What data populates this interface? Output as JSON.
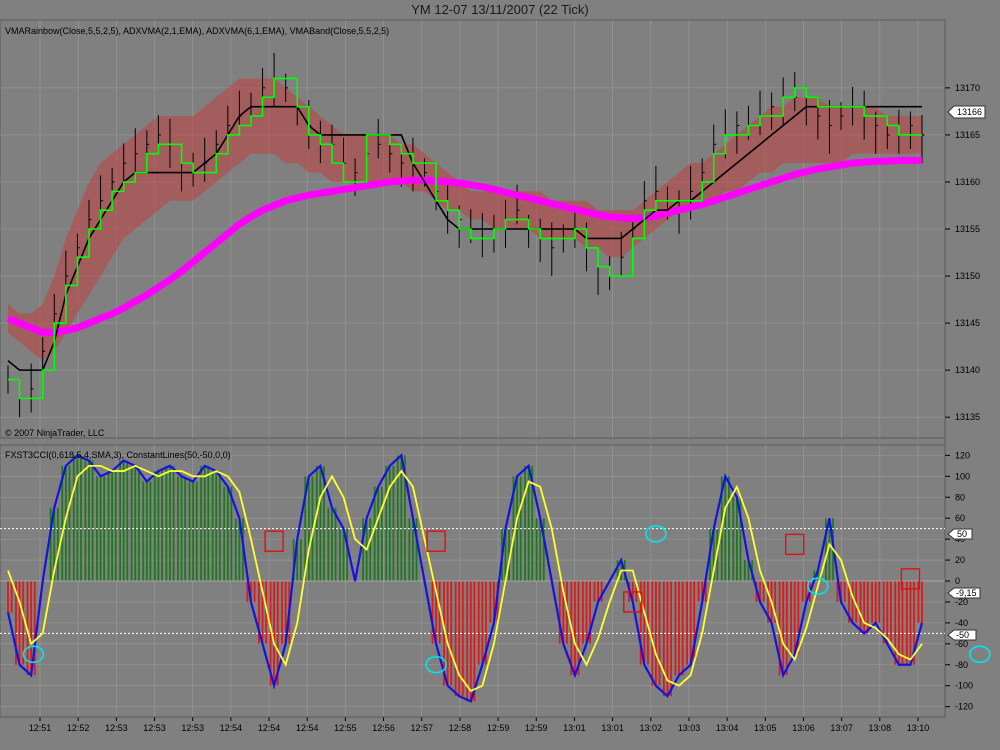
{
  "window": {
    "title": "YM 12-07  13/11/2007  (22 Tick)"
  },
  "upper_panel": {
    "indicator_label": "VMARainbow(Close,5,5,2,5), ADXVMA(2,1,EMA), ADXVMA(6,1,EMA), VMABand(Close,5,5,2,5)",
    "copyright": "© 2007 NinjaTrader, LLC",
    "last_price_marker": "13166"
  },
  "lower_panel": {
    "indicator_label": "FXST3CCI(0,618,5,4,SMA,3), ConstantLines(50,-50,0,0)",
    "markers": {
      "upper_line": "50",
      "lower_line": "-50",
      "current_value": "-9,15"
    }
  },
  "x_ticks": [
    "12:51",
    "12:52",
    "12:53",
    "12:53",
    "12:53",
    "12:54",
    "12:54",
    "12:54",
    "12:55",
    "12:56",
    "12:57",
    "12:58",
    "12:59",
    "12:59",
    "13:01",
    "13:01",
    "13:02",
    "13:03",
    "13:04",
    "13:05",
    "13:06",
    "13:07",
    "13:08",
    "13:10"
  ],
  "colors": {
    "background": "#808080",
    "band_fill": "#c04040",
    "rainbow_green": "#00ff00",
    "adx_black": "#000000",
    "magenta": "#ff00ff",
    "cci_blue": "#1414dc",
    "cci_yellow": "#ffff30",
    "hist_green": "#1c7a1c",
    "hist_red": "#dd1a1a",
    "marker_cyan": "#00e5ee",
    "marker_red": "#e01010"
  },
  "chart_data": [
    {
      "type": "line",
      "title": "",
      "ylim": [
        13133,
        13177
      ],
      "yticks": [
        13135,
        13140,
        13145,
        13150,
        13155,
        13160,
        13165,
        13170
      ],
      "series": [
        {
          "role": "price_close",
          "values": [
            13139,
            13137,
            13138,
            13142,
            13146,
            13150,
            13153,
            13156,
            13158,
            13160,
            13162,
            13163,
            13164,
            13165,
            13164,
            13162,
            13161,
            13162,
            13164,
            13166,
            13167,
            13168,
            13170,
            13171,
            13170,
            13168,
            13166,
            13165,
            13164,
            13162,
            13161,
            13163,
            13164,
            13163,
            13162,
            13162,
            13161,
            13159,
            13157,
            13156,
            13155,
            13154,
            13155,
            13156,
            13157,
            13155,
            13154,
            13153,
            13154,
            13155,
            13153,
            13151,
            13150,
            13152,
            13155,
            13158,
            13159,
            13158,
            13157,
            13159,
            13161,
            13164,
            13165,
            13166,
            13166,
            13167,
            13168,
            13169,
            13169,
            13168,
            13167,
            13166,
            13167,
            13168,
            13167,
            13166,
            13165,
            13165,
            13166,
            13165
          ]
        },
        {
          "role": "rainbow_green",
          "values": [
            13139,
            13137,
            13137,
            13140,
            13145,
            13149,
            13152,
            13155,
            13157,
            13159,
            13160,
            13161,
            13163,
            13164,
            13164,
            13162,
            13161,
            13161,
            13163,
            13165,
            13166,
            13167,
            13169,
            13171,
            13171,
            13168,
            13165,
            13164,
            13162,
            13160,
            13160,
            13165,
            13165,
            13164,
            13163,
            13162,
            13162,
            13158,
            13157,
            13155,
            13154,
            13154,
            13155,
            13156,
            13156,
            13155,
            13154,
            13154,
            13154,
            13155,
            13153,
            13151,
            13150,
            13150,
            13154,
            13157,
            13158,
            13158,
            13158,
            13158,
            13160,
            13163,
            13165,
            13165,
            13166,
            13167,
            13167,
            13169,
            13170,
            13169,
            13168,
            13168,
            13168,
            13168,
            13167,
            13167,
            13166,
            13165,
            13165,
            13165
          ]
        },
        {
          "role": "adxvma_black",
          "values": [
            13141,
            13140,
            13140,
            13140,
            13143,
            13148,
            13151,
            13154,
            13156,
            13158,
            13160,
            13161,
            13161,
            13161,
            13161,
            13161,
            13161,
            13162,
            13163,
            13165,
            13167,
            13168,
            13168,
            13168,
            13168,
            13168,
            13166,
            13165,
            13165,
            13165,
            13165,
            13165,
            13165,
            13165,
            13165,
            13162,
            13160,
            13158,
            13156,
            13155,
            13155,
            13155,
            13155,
            13155,
            13155,
            13155,
            13155,
            13155,
            13155,
            13155,
            13154,
            13154,
            13154,
            13154,
            13155,
            13156,
            13157,
            13157,
            13158,
            13158,
            13159,
            13160,
            13161,
            13162,
            13163,
            13164,
            13165,
            13166,
            13167,
            13168,
            13168,
            13168,
            13168,
            13168,
            13168,
            13168,
            13168,
            13168,
            13168,
            13168
          ]
        },
        {
          "role": "vmaband_magenta",
          "values": [
            13145.5,
            13145,
            13144.5,
            13144,
            13144,
            13144.2,
            13144.5,
            13145,
            13145.5,
            13146,
            13146.6,
            13147.3,
            13148,
            13148.8,
            13149.6,
            13150.5,
            13151.5,
            13152.5,
            13153.5,
            13154.5,
            13155.5,
            13156.3,
            13157,
            13157.5,
            13158,
            13158.3,
            13158.6,
            13158.8,
            13159,
            13159.2,
            13159.4,
            13159.6,
            13159.8,
            13160,
            13160.1,
            13160.2,
            13160.2,
            13160.1,
            13160,
            13159.9,
            13159.7,
            13159.5,
            13159.2,
            13158.9,
            13158.6,
            13158.3,
            13158,
            13157.7,
            13157.4,
            13157.1,
            13156.8,
            13156.5,
            13156.3,
            13156.2,
            13156.1,
            13156.2,
            13156.4,
            13156.7,
            13157,
            13157.3,
            13157.6,
            13158,
            13158.4,
            13158.8,
            13159.2,
            13159.6,
            13160,
            13160.4,
            13160.8,
            13161.1,
            13161.4,
            13161.6,
            13161.8,
            13162,
            13162.1,
            13162.2,
            13162.2,
            13162.3,
            13162.3,
            13162.3
          ]
        },
        {
          "role": "band_upper",
          "values": [
            13147,
            13146,
            13146,
            13147,
            13150,
            13154,
            13157,
            13160,
            13162,
            13163,
            13164,
            13165,
            13166,
            13167,
            13167,
            13167,
            13167,
            13168,
            13169,
            13170,
            13171,
            13171,
            13171,
            13171,
            13170,
            13169,
            13168,
            13167,
            13166,
            13165,
            13165,
            13165,
            13165,
            13165,
            13164,
            13164,
            13163,
            13162,
            13161,
            13160,
            13159,
            13159,
            13159,
            13159,
            13159,
            13159,
            13159,
            13158,
            13158,
            13158,
            13158,
            13157,
            13157,
            13157,
            13157,
            13158,
            13159,
            13160,
            13161,
            13162,
            13162,
            13163,
            13164,
            13165,
            13166,
            13167,
            13168,
            13168,
            13169,
            13169,
            13169,
            13168,
            13168,
            13168,
            13168,
            13168,
            13167,
            13167,
            13167,
            13167
          ]
        },
        {
          "role": "band_lower",
          "values": [
            13144,
            13143,
            13142,
            13141,
            13142,
            13144,
            13146,
            13148,
            13150,
            13152,
            13154,
            13155,
            13156,
            13157,
            13158,
            13158,
            13158,
            13159,
            13160,
            13161,
            13162,
            13163,
            13163,
            13163,
            13162,
            13162,
            13161,
            13161,
            13160,
            13160,
            13160,
            13160,
            13160,
            13160,
            13160,
            13159,
            13159,
            13158,
            13157,
            13157,
            13156,
            13156,
            13155,
            13155,
            13155,
            13155,
            13154,
            13154,
            13154,
            13154,
            13153,
            13153,
            13152,
            13152,
            13153,
            13154,
            13155,
            13156,
            13157,
            13157,
            13158,
            13158,
            13159,
            13159,
            13160,
            13161,
            13161,
            13162,
            13162,
            13162,
            13162,
            13162,
            13162,
            13163,
            13163,
            13163,
            13163,
            13163,
            13163,
            13163
          ]
        }
      ]
    },
    {
      "type": "bar",
      "title": "",
      "ylim": [
        -128,
        128
      ],
      "yticks": [
        120,
        100,
        80,
        60,
        40,
        20,
        0,
        -20,
        -40,
        -60,
        -80,
        -100,
        -120
      ],
      "series": [
        {
          "role": "cci_histogram_blue",
          "values": [
            -30,
            -80,
            -90,
            0,
            70,
            110,
            120,
            115,
            100,
            105,
            115,
            110,
            95,
            105,
            110,
            100,
            95,
            110,
            105,
            90,
            60,
            -20,
            -60,
            -100,
            -60,
            40,
            100,
            110,
            70,
            50,
            0,
            60,
            90,
            110,
            120,
            60,
            0,
            -60,
            -100,
            -110,
            -115,
            -80,
            -40,
            50,
            100,
            110,
            60,
            0,
            -60,
            -90,
            -60,
            -20,
            0,
            20,
            -20,
            -80,
            -100,
            -110,
            -90,
            -80,
            -20,
            50,
            100,
            80,
            20,
            -20,
            -40,
            -90,
            -70,
            -20,
            10,
            60,
            -20,
            -40,
            -50,
            -40,
            -60,
            -80,
            -80,
            -40
          ]
        },
        {
          "role": "cci_signal_yellow",
          "values": [
            10,
            -20,
            -60,
            -50,
            10,
            60,
            100,
            110,
            110,
            105,
            105,
            110,
            105,
            100,
            105,
            105,
            100,
            100,
            105,
            100,
            85,
            40,
            -10,
            -60,
            -80,
            -40,
            30,
            80,
            100,
            80,
            40,
            30,
            60,
            90,
            105,
            90,
            40,
            -10,
            -60,
            -90,
            -105,
            -100,
            -60,
            0,
            60,
            95,
            90,
            50,
            -10,
            -60,
            -80,
            -55,
            -20,
            10,
            10,
            -30,
            -70,
            -95,
            -100,
            -90,
            -50,
            10,
            70,
            90,
            60,
            10,
            -20,
            -60,
            -75,
            -45,
            -5,
            35,
            20,
            -15,
            -40,
            -45,
            -55,
            -70,
            -75,
            -60
          ]
        }
      ]
    }
  ]
}
